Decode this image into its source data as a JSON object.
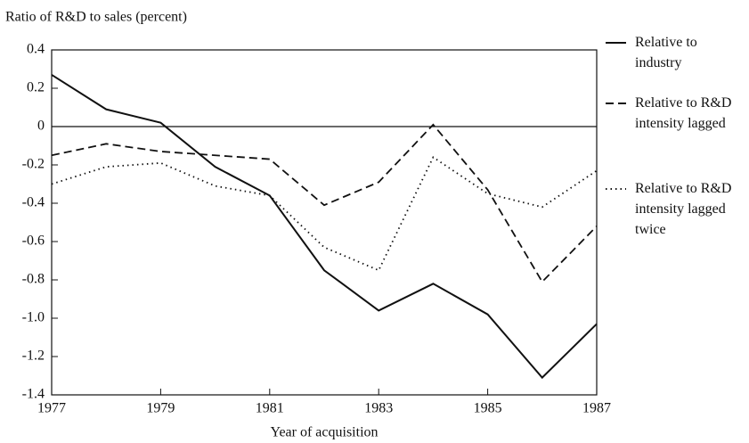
{
  "chart_data": {
    "type": "line",
    "y_label": "Ratio of R&D to sales (percent)",
    "x_label": "Year of acquisition",
    "x": [
      1977,
      1978,
      1979,
      1980,
      1981,
      1982,
      1983,
      1984,
      1985,
      1986,
      1987
    ],
    "xlim": [
      1977,
      1987
    ],
    "xticks": [
      1977,
      1979,
      1981,
      1983,
      1985,
      1987
    ],
    "ylim": [
      -1.4,
      0.4
    ],
    "yticks": [
      0.4,
      0.2,
      0,
      -0.2,
      -0.4,
      -0.6,
      -0.8,
      {
        "value": -1,
        "label": "-1.0"
      },
      -1.2,
      -1.4
    ],
    "zero_line": true,
    "series": [
      {
        "name": "Relative to industry",
        "color": "#111111",
        "dash": "solid",
        "values": [
          0.27,
          0.09,
          0.02,
          -0.21,
          -0.36,
          -0.75,
          -0.96,
          -0.82,
          -0.98,
          -1.31,
          -1.03
        ]
      },
      {
        "name": "Relative to R&D intensity lagged",
        "color": "#111111",
        "dash": "dashed",
        "values": [
          -0.15,
          -0.09,
          -0.13,
          -0.15,
          -0.17,
          -0.41,
          -0.29,
          0.01,
          -0.33,
          -0.81,
          -0.52
        ]
      },
      {
        "name": "Relative to R&D intensity lagged twice",
        "color": "#111111",
        "dash": "dotted",
        "values": [
          -0.3,
          -0.21,
          -0.19,
          -0.31,
          -0.36,
          -0.63,
          -0.75,
          -0.16,
          -0.35,
          -0.42,
          -0.23
        ]
      }
    ]
  }
}
